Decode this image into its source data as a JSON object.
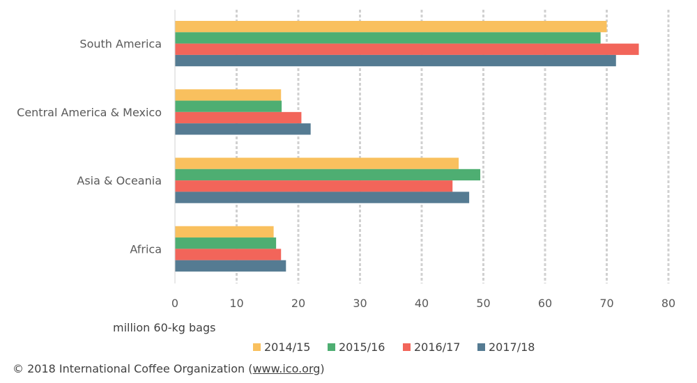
{
  "chart_data": {
    "type": "bar",
    "orientation": "horizontal",
    "title": "",
    "categories": [
      "South America",
      "Central America & Mexico",
      "Asia & Oceania",
      "Africa"
    ],
    "series": [
      {
        "name": "2014/15",
        "color": "#F9C05E",
        "values": [
          70.0,
          17.2,
          46.0,
          16.0
        ]
      },
      {
        "name": "2015/16",
        "color": "#4EAE72",
        "values": [
          69.0,
          17.3,
          49.5,
          16.4
        ]
      },
      {
        "name": "2016/17",
        "color": "#F2655A",
        "values": [
          75.2,
          20.5,
          45.0,
          17.2
        ]
      },
      {
        "name": "2017/18",
        "color": "#557B92",
        "values": [
          71.5,
          22.0,
          47.7,
          18.0
        ]
      }
    ],
    "xlabel": "million 60-kg bags",
    "ylabel": "",
    "xlim": [
      0,
      80
    ],
    "xticks": [
      "0",
      "10",
      "20",
      "30",
      "40",
      "50",
      "60",
      "70",
      "80"
    ],
    "grid": true,
    "legend_position": "bottom"
  },
  "credit": {
    "prefix": "© 2018 International Coffee Organization (",
    "link": "www.ico.org",
    "suffix": ")"
  }
}
